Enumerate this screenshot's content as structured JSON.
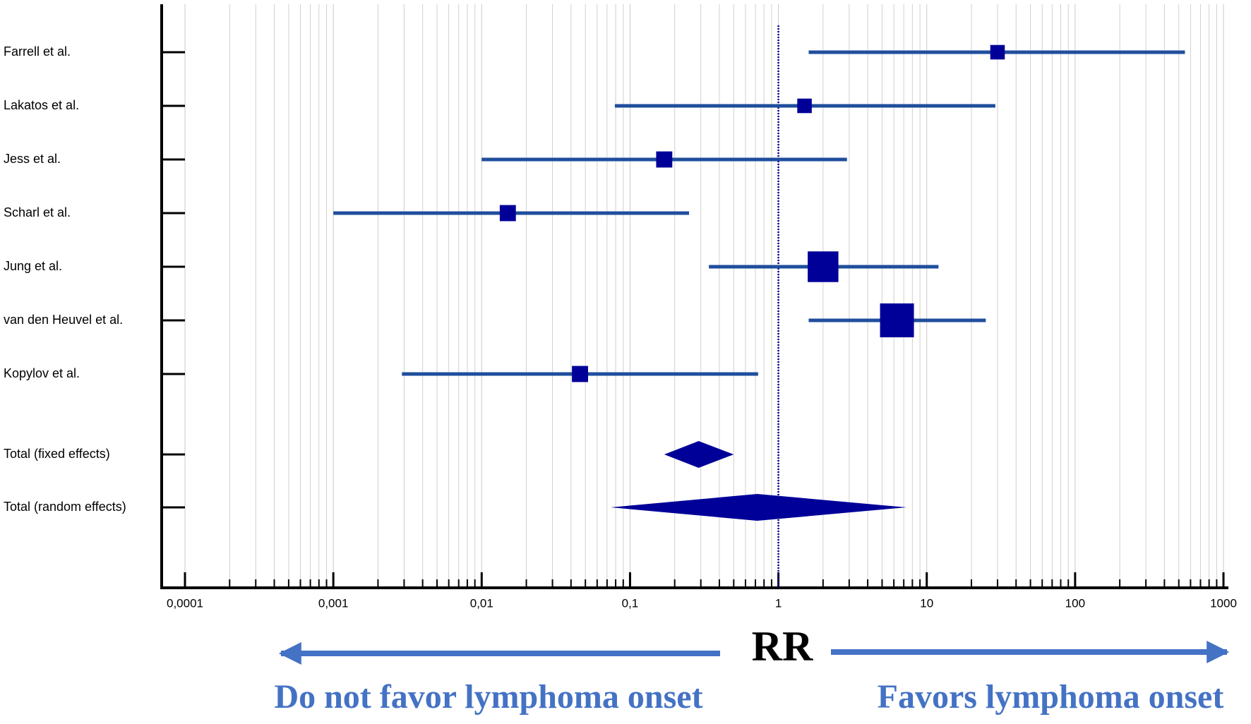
{
  "chart_data": {
    "type": "forest",
    "categories": [
      "Farrell et al.",
      "Lakatos et al.",
      "Jess et al.",
      "Scharl et al.",
      "Jung et al.",
      "van den Heuvel et al.",
      "Kopylov et al.",
      "Total (fixed effects)",
      "Total (random effects)"
    ],
    "shapes": [
      "square",
      "square",
      "square",
      "square",
      "square",
      "square",
      "square",
      "diamond",
      "diamond"
    ],
    "values": [
      30,
      1.5,
      0.17,
      0.015,
      2.0,
      6.3,
      0.046,
      0.29,
      0.72
    ],
    "lower": [
      1.6,
      0.079,
      0.01,
      0.001,
      0.34,
      1.6,
      0.0029,
      0.17,
      0.074
    ],
    "upper": [
      550,
      29,
      2.9,
      0.25,
      12,
      25,
      0.73,
      0.5,
      7.3
    ],
    "weights": [
      6.4,
      6.4,
      7.9,
      7.9,
      28.6,
      34.9,
      7.9,
      null,
      null
    ],
    "line_color": "#1f4e9c",
    "marker_color": "#000099",
    "log_x": true,
    "grid": true,
    "reference_line": 1,
    "xlim": [
      0.0001,
      1000
    ],
    "xticks": [
      {
        "value": 0.0001,
        "label": "0,0001"
      },
      {
        "value": 0.001,
        "label": "0,001"
      },
      {
        "value": 0.01,
        "label": "0,01"
      },
      {
        "value": 0.1,
        "label": "0,1"
      },
      1,
      10,
      100,
      1000
    ],
    "xlabel": "RR",
    "left_annotation": "Do not favor lymphoma onset",
    "right_annotation": "Favors lymphoma onset",
    "annotation_color": "#4472c4"
  }
}
